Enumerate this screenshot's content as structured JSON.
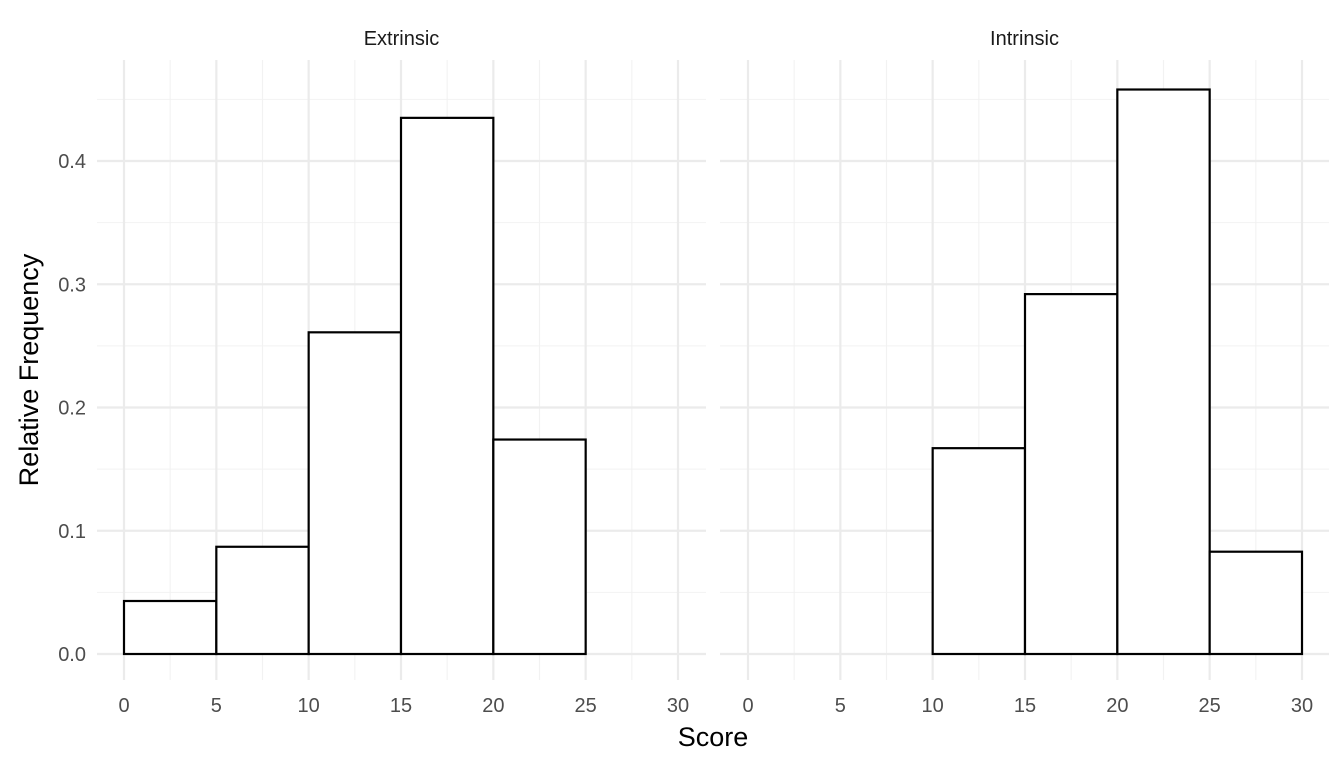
{
  "chart_data": {
    "type": "bar",
    "subtype": "faceted-histogram",
    "xlabel": "Score",
    "ylabel": "Relative Frequency",
    "xlim": [
      0,
      30
    ],
    "ylim": [
      0,
      0.46
    ],
    "x_ticks": [
      0,
      5,
      10,
      15,
      20,
      25,
      30
    ],
    "y_ticks": [
      0.0,
      0.1,
      0.2,
      0.3,
      0.4
    ],
    "y_tick_labels": [
      "0.0",
      "0.1",
      "0.2",
      "0.3",
      "0.4"
    ],
    "bin_width": 5,
    "grid": true,
    "bar_fill": "#ffffff",
    "bar_outline": "#000000",
    "facets": [
      {
        "name": "Extrinsic",
        "bins": [
          {
            "start": 0,
            "end": 5,
            "value": 0.043
          },
          {
            "start": 5,
            "end": 10,
            "value": 0.087
          },
          {
            "start": 10,
            "end": 15,
            "value": 0.261
          },
          {
            "start": 15,
            "end": 20,
            "value": 0.435
          },
          {
            "start": 20,
            "end": 25,
            "value": 0.174
          },
          {
            "start": 25,
            "end": 30,
            "value": 0.0
          }
        ]
      },
      {
        "name": "Intrinsic",
        "bins": [
          {
            "start": 0,
            "end": 5,
            "value": 0.0
          },
          {
            "start": 5,
            "end": 10,
            "value": 0.0
          },
          {
            "start": 10,
            "end": 15,
            "value": 0.167
          },
          {
            "start": 15,
            "end": 20,
            "value": 0.292
          },
          {
            "start": 20,
            "end": 25,
            "value": 0.458
          },
          {
            "start": 25,
            "end": 30,
            "value": 0.083
          }
        ]
      }
    ]
  }
}
